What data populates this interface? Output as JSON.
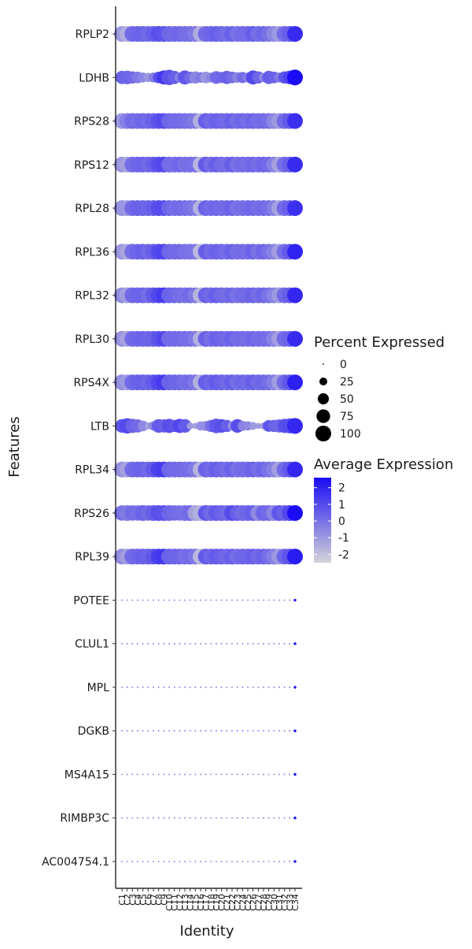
{
  "chart_data": {
    "type": "dotplot",
    "xlabel": "Identity",
    "ylabel": "Features",
    "features": [
      "RPLP2",
      "LDHB",
      "RPS28",
      "RPS12",
      "RPL28",
      "RPL36",
      "RPL32",
      "RPL30",
      "RPS4X",
      "LTB",
      "RPL34",
      "RPS26",
      "RPL39",
      "POTEE",
      "CLUL1",
      "MPL",
      "DGKB",
      "MS4A15",
      "RIMBP3C",
      "AC004754.1"
    ],
    "identities": [
      "C1",
      "C2",
      "C3",
      "C4",
      "C5",
      "C6",
      "C7",
      "C8",
      "C9",
      "C10",
      "C11",
      "C12",
      "C13",
      "C14",
      "C15",
      "C16",
      "C17",
      "C18",
      "C19",
      "C20",
      "C21",
      "C22",
      "C23",
      "C24",
      "C25",
      "C26",
      "C27",
      "C28",
      "C29",
      "C30",
      "C31",
      "C32",
      "C33",
      "C34"
    ],
    "percent_expressed": [
      [
        100,
        100,
        100,
        100,
        100,
        100,
        100,
        100,
        100,
        100,
        100,
        100,
        100,
        100,
        100,
        100,
        100,
        100,
        100,
        100,
        100,
        100,
        100,
        100,
        100,
        100,
        100,
        100,
        100,
        100,
        100,
        100,
        100,
        100
      ],
      [
        70,
        75,
        60,
        55,
        40,
        35,
        40,
        55,
        80,
        95,
        70,
        40,
        80,
        55,
        60,
        45,
        55,
        40,
        65,
        50,
        70,
        55,
        45,
        50,
        40,
        80,
        60,
        35,
        70,
        55,
        40,
        60,
        75,
        100
      ],
      [
        100,
        100,
        100,
        100,
        100,
        100,
        100,
        100,
        100,
        100,
        100,
        100,
        100,
        100,
        100,
        100,
        100,
        100,
        100,
        100,
        100,
        100,
        100,
        100,
        100,
        100,
        100,
        100,
        100,
        100,
        100,
        100,
        100,
        100
      ],
      [
        100,
        100,
        100,
        100,
        100,
        100,
        100,
        100,
        100,
        100,
        100,
        100,
        100,
        100,
        100,
        100,
        100,
        100,
        100,
        100,
        100,
        100,
        100,
        100,
        100,
        100,
        100,
        100,
        100,
        100,
        100,
        100,
        100,
        100
      ],
      [
        100,
        100,
        100,
        100,
        100,
        100,
        100,
        100,
        100,
        100,
        100,
        100,
        100,
        100,
        100,
        100,
        100,
        100,
        100,
        100,
        100,
        100,
        100,
        100,
        100,
        100,
        100,
        100,
        100,
        100,
        100,
        100,
        100,
        100
      ],
      [
        100,
        100,
        100,
        100,
        100,
        100,
        100,
        100,
        100,
        100,
        100,
        100,
        100,
        100,
        100,
        100,
        100,
        100,
        100,
        100,
        100,
        100,
        100,
        100,
        100,
        100,
        100,
        100,
        100,
        100,
        100,
        100,
        100,
        100
      ],
      [
        100,
        100,
        100,
        100,
        100,
        100,
        100,
        100,
        100,
        100,
        100,
        100,
        100,
        100,
        100,
        100,
        100,
        100,
        100,
        100,
        100,
        100,
        100,
        100,
        100,
        100,
        100,
        100,
        100,
        100,
        100,
        100,
        100,
        100
      ],
      [
        100,
        100,
        100,
        100,
        100,
        100,
        100,
        100,
        100,
        100,
        100,
        100,
        100,
        100,
        100,
        100,
        100,
        100,
        100,
        100,
        100,
        100,
        100,
        100,
        100,
        100,
        100,
        100,
        100,
        100,
        100,
        100,
        100,
        100
      ],
      [
        100,
        100,
        100,
        100,
        100,
        100,
        100,
        100,
        100,
        100,
        100,
        100,
        100,
        100,
        100,
        100,
        100,
        100,
        100,
        100,
        100,
        100,
        100,
        100,
        100,
        100,
        100,
        100,
        100,
        100,
        100,
        100,
        100,
        100
      ],
      [
        75,
        95,
        80,
        70,
        45,
        20,
        35,
        75,
        70,
        80,
        60,
        80,
        75,
        20,
        15,
        35,
        40,
        60,
        85,
        75,
        60,
        30,
        75,
        40,
        35,
        25,
        15,
        20,
        55,
        60,
        70,
        80,
        90,
        100
      ],
      [
        100,
        100,
        100,
        100,
        100,
        100,
        100,
        100,
        100,
        100,
        100,
        100,
        100,
        100,
        100,
        100,
        100,
        100,
        100,
        100,
        100,
        100,
        100,
        100,
        100,
        100,
        100,
        100,
        100,
        100,
        100,
        100,
        100,
        100
      ],
      [
        95,
        100,
        95,
        95,
        100,
        95,
        100,
        100,
        100,
        100,
        95,
        95,
        100,
        100,
        100,
        100,
        100,
        100,
        100,
        100,
        100,
        100,
        100,
        100,
        100,
        100,
        100,
        100,
        100,
        100,
        100,
        100,
        100,
        100
      ],
      [
        100,
        100,
        100,
        100,
        100,
        100,
        100,
        100,
        100,
        100,
        100,
        100,
        100,
        100,
        100,
        100,
        100,
        100,
        100,
        100,
        100,
        100,
        100,
        100,
        100,
        100,
        100,
        100,
        100,
        100,
        100,
        100,
        100,
        100
      ],
      [
        0,
        0,
        0,
        0,
        0,
        0,
        0,
        0,
        0,
        0,
        0,
        0,
        0,
        0,
        0,
        0,
        0,
        0,
        0,
        0,
        0,
        0,
        0,
        0,
        0,
        0,
        0,
        0,
        0,
        0,
        0,
        0,
        0,
        3
      ],
      [
        0,
        0,
        0,
        0,
        0,
        0,
        0,
        0,
        0,
        0,
        0,
        0,
        0,
        0,
        0,
        0,
        0,
        0,
        0,
        0,
        0,
        0,
        0,
        0,
        0,
        0,
        0,
        0,
        0,
        0,
        0,
        0,
        0,
        3
      ],
      [
        0,
        0,
        0,
        0,
        0,
        0,
        0,
        0,
        0,
        0,
        0,
        0,
        0,
        0,
        0,
        0,
        0,
        0,
        0,
        0,
        0,
        0,
        0,
        0,
        0,
        0,
        0,
        0,
        0,
        0,
        0,
        0,
        0,
        3
      ],
      [
        0,
        0,
        0,
        0,
        0,
        0,
        0,
        0,
        0,
        0,
        0,
        0,
        0,
        0,
        0,
        0,
        0,
        0,
        0,
        0,
        0,
        0,
        0,
        0,
        0,
        0,
        0,
        0,
        0,
        0,
        0,
        0,
        0,
        3
      ],
      [
        0,
        0,
        0,
        0,
        0,
        0,
        0,
        0,
        0,
        0,
        0,
        0,
        0,
        0,
        0,
        0,
        0,
        0,
        0,
        0,
        0,
        0,
        0,
        0,
        0,
        0,
        0,
        0,
        0,
        0,
        0,
        0,
        0,
        3
      ],
      [
        0,
        0,
        0,
        0,
        0,
        0,
        0,
        0,
        0,
        0,
        0,
        0,
        0,
        0,
        0,
        0,
        0,
        0,
        0,
        0,
        0,
        0,
        0,
        0,
        0,
        0,
        0,
        0,
        0,
        0,
        0,
        0,
        0,
        3
      ],
      [
        0,
        0,
        0,
        0,
        0,
        0,
        0,
        0,
        0,
        0,
        0,
        0,
        0,
        0,
        0,
        0,
        0,
        0,
        0,
        0,
        0,
        0,
        0,
        0,
        0,
        0,
        0,
        0,
        0,
        0,
        0,
        0,
        0,
        3
      ]
    ],
    "average_expression": [
      [
        -1.0,
        -1.5,
        0.2,
        0.3,
        0.4,
        0.2,
        0.5,
        0.9,
        0.8,
        0.3,
        0.2,
        0.3,
        0.1,
        0.1,
        -0.2,
        -1.5,
        0.2,
        0.3,
        0.5,
        0.3,
        0.1,
        0.4,
        0.0,
        0.2,
        0.2,
        0.5,
        0.1,
        0.3,
        0.0,
        -0.5,
        -1.0,
        0.2,
        0.5,
        1.8
      ],
      [
        0.4,
        0.3,
        0.2,
        -0.2,
        -0.5,
        -1.0,
        -0.3,
        0.9,
        1.5,
        0.8,
        0.5,
        -0.4,
        0.7,
        0.2,
        -0.5,
        -0.2,
        -0.9,
        -0.5,
        0.2,
        0.3,
        0.4,
        0.1,
        -0.4,
        0.2,
        -0.3,
        1.0,
        0.3,
        -0.5,
        0.5,
        0.4,
        -0.2,
        0.8,
        1.2,
        2.6
      ],
      [
        -1.0,
        -0.3,
        0.2,
        0.1,
        0.3,
        0.2,
        0.4,
        0.8,
        1.0,
        0.3,
        0.2,
        0.2,
        0.1,
        0.0,
        -0.2,
        -1.6,
        0.5,
        0.2,
        0.4,
        0.3,
        0.2,
        0.4,
        0.1,
        0.3,
        0.1,
        0.3,
        0.1,
        0.2,
        0.1,
        -0.5,
        -1.0,
        0.2,
        0.6,
        1.7
      ],
      [
        -0.9,
        -1.2,
        0.1,
        0.3,
        0.4,
        0.2,
        0.5,
        0.9,
        1.1,
        0.2,
        0.1,
        0.3,
        0.0,
        0.1,
        0.0,
        -1.7,
        0.6,
        0.1,
        0.5,
        0.2,
        0.1,
        0.5,
        0.0,
        0.2,
        0.1,
        0.3,
        0.1,
        0.3,
        0.2,
        -0.4,
        -1.2,
        0.1,
        0.5,
        1.8
      ],
      [
        -0.8,
        -1.0,
        0.2,
        0.4,
        0.4,
        0.3,
        0.5,
        0.9,
        1.0,
        0.3,
        0.1,
        0.2,
        0.1,
        0.0,
        -0.2,
        -1.6,
        0.4,
        0.2,
        0.3,
        0.2,
        0.2,
        0.4,
        0.0,
        0.1,
        0.2,
        0.3,
        0.1,
        0.2,
        0.1,
        -0.3,
        -1.2,
        0.2,
        0.5,
        1.7
      ],
      [
        -0.9,
        -1.3,
        0.1,
        0.3,
        0.5,
        0.2,
        0.5,
        1.0,
        1.2,
        0.3,
        0.2,
        0.2,
        0.0,
        0.0,
        -0.1,
        -1.8,
        0.5,
        0.2,
        0.4,
        0.3,
        0.1,
        0.4,
        0.1,
        0.2,
        0.1,
        0.4,
        0.0,
        0.3,
        0.0,
        -0.4,
        -1.1,
        0.1,
        0.6,
        2.0
      ],
      [
        -0.7,
        -1.1,
        0.2,
        0.3,
        0.4,
        0.1,
        0.6,
        1.1,
        1.4,
        0.4,
        0.3,
        0.1,
        0.0,
        0.2,
        -0.2,
        -1.7,
        0.4,
        0.2,
        0.5,
        0.2,
        0.1,
        0.3,
        0.0,
        0.2,
        0.2,
        0.4,
        0.1,
        0.3,
        0.0,
        -0.4,
        -1.0,
        0.2,
        0.5,
        1.9
      ],
      [
        -0.8,
        -1.2,
        0.2,
        0.3,
        0.4,
        0.3,
        0.4,
        0.8,
        1.1,
        0.2,
        0.2,
        0.2,
        0.1,
        0.1,
        -0.2,
        -1.6,
        0.4,
        0.1,
        0.4,
        0.3,
        0.2,
        0.4,
        0.1,
        0.2,
        0.1,
        0.3,
        0.1,
        0.2,
        0.1,
        -0.4,
        -1.1,
        0.2,
        0.4,
        1.8
      ],
      [
        -0.7,
        -1.0,
        0.2,
        0.4,
        0.5,
        0.3,
        0.6,
        1.1,
        1.4,
        0.4,
        0.3,
        0.3,
        0.1,
        0.2,
        -0.1,
        -1.6,
        0.5,
        0.3,
        0.6,
        0.4,
        0.2,
        0.5,
        0.1,
        0.3,
        0.2,
        0.5,
        0.2,
        0.3,
        0.1,
        -0.3,
        -1.1,
        0.2,
        0.7,
        2.1
      ],
      [
        0.8,
        1.0,
        0.4,
        0.2,
        -0.6,
        -1.2,
        -0.5,
        0.6,
        0.5,
        0.9,
        0.7,
        1.1,
        0.6,
        -1.0,
        -1.2,
        -0.8,
        -0.7,
        0.1,
        0.7,
        0.9,
        0.5,
        -0.8,
        0.9,
        -0.4,
        -0.6,
        -1.0,
        -1.1,
        -1.0,
        0.8,
        0.4,
        0.3,
        0.9,
        1.0,
        1.9
      ],
      [
        -0.8,
        -1.2,
        0.2,
        0.3,
        0.4,
        0.2,
        0.6,
        1.2,
        1.4,
        0.3,
        0.2,
        0.2,
        0.1,
        0.1,
        -0.2,
        -1.7,
        0.4,
        0.2,
        0.5,
        0.3,
        0.1,
        0.4,
        0.0,
        0.2,
        0.2,
        0.4,
        0.1,
        0.3,
        0.0,
        -0.4,
        -1.1,
        0.2,
        0.6,
        1.9
      ],
      [
        0.0,
        -0.2,
        0.2,
        0.1,
        0.4,
        0.2,
        0.5,
        0.9,
        0.8,
        0.3,
        0.2,
        0.1,
        0.0,
        0.2,
        -1.2,
        -1.6,
        0.7,
        0.2,
        0.6,
        0.4,
        0.2,
        1.0,
        0.5,
        0.2,
        0.3,
        0.5,
        -0.6,
        0.3,
        0.2,
        -0.5,
        0.7,
        0.4,
        1.1,
        2.6
      ],
      [
        -0.6,
        -1.1,
        0.2,
        0.3,
        0.5,
        0.4,
        0.7,
        1.3,
        1.5,
        0.4,
        0.3,
        0.3,
        0.1,
        0.2,
        -0.1,
        -1.8,
        0.6,
        0.3,
        0.6,
        0.4,
        0.2,
        0.5,
        0.1,
        0.3,
        0.3,
        0.5,
        0.2,
        0.4,
        0.1,
        -0.3,
        -1.0,
        0.3,
        0.8,
        2.2
      ],
      [
        0,
        0,
        0,
        0,
        0,
        0,
        0,
        0,
        0,
        0,
        0,
        0,
        0,
        0,
        0,
        0,
        0,
        0,
        0,
        0,
        0,
        0,
        0,
        0,
        0,
        0,
        0,
        0,
        0,
        0,
        0,
        0,
        0,
        2.5
      ],
      [
        0,
        0,
        0,
        0,
        0,
        0,
        0,
        0,
        0,
        0,
        0,
        0,
        0,
        0,
        0,
        0,
        0,
        0,
        0,
        0,
        0,
        0,
        0,
        0,
        0,
        0,
        0,
        0,
        0,
        0,
        0,
        0,
        0,
        2.5
      ],
      [
        0,
        0,
        0,
        0,
        0,
        0,
        0,
        0,
        0,
        0,
        0,
        0,
        0,
        0,
        0,
        0,
        0,
        0,
        0,
        0,
        0,
        0,
        0,
        0,
        0,
        0,
        0,
        0,
        0,
        0,
        0,
        0,
        0,
        2.5
      ],
      [
        0,
        0,
        0,
        0,
        0,
        0,
        0,
        0,
        0,
        0,
        0,
        0,
        0,
        0,
        0,
        0,
        0,
        0,
        0,
        0,
        0,
        0,
        0,
        0,
        0,
        0,
        0,
        0,
        0,
        0,
        0,
        0,
        0,
        2.5
      ],
      [
        0,
        0,
        0,
        0,
        0,
        0,
        0,
        0,
        0,
        0,
        0,
        0,
        0,
        0,
        0,
        0,
        0,
        0,
        0,
        0,
        0,
        0,
        0,
        0,
        0,
        0,
        0,
        0,
        0,
        0,
        0,
        0,
        0,
        2.5
      ],
      [
        0,
        0,
        0,
        0,
        0,
        0,
        0,
        0,
        0,
        0,
        0,
        0,
        0,
        0,
        0,
        0,
        0,
        0,
        0,
        0,
        0,
        0,
        0,
        0,
        0,
        0,
        0,
        0,
        0,
        0,
        0,
        0,
        0,
        2.5
      ],
      [
        0,
        0,
        0,
        0,
        0,
        0,
        0,
        0,
        0,
        0,
        0,
        0,
        0,
        0,
        0,
        0,
        0,
        0,
        0,
        0,
        0,
        0,
        0,
        0,
        0,
        0,
        0,
        0,
        0,
        0,
        0,
        0,
        0,
        2.5
      ]
    ],
    "size_legend": {
      "title": "Percent Expressed",
      "breaks": [
        0,
        25,
        50,
        75,
        100
      ],
      "labels": [
        "0",
        "25",
        "50",
        "75",
        "100"
      ]
    },
    "color_legend": {
      "title": "Average Expression",
      "breaks": [
        2,
        1,
        0,
        -1,
        -2
      ],
      "labels": [
        "2",
        "1",
        "0",
        "-1",
        "-2"
      ],
      "range": [
        -2.5,
        2.6
      ],
      "low_color": "#d4d4d8",
      "high_color": "#1a0cf5"
    }
  }
}
